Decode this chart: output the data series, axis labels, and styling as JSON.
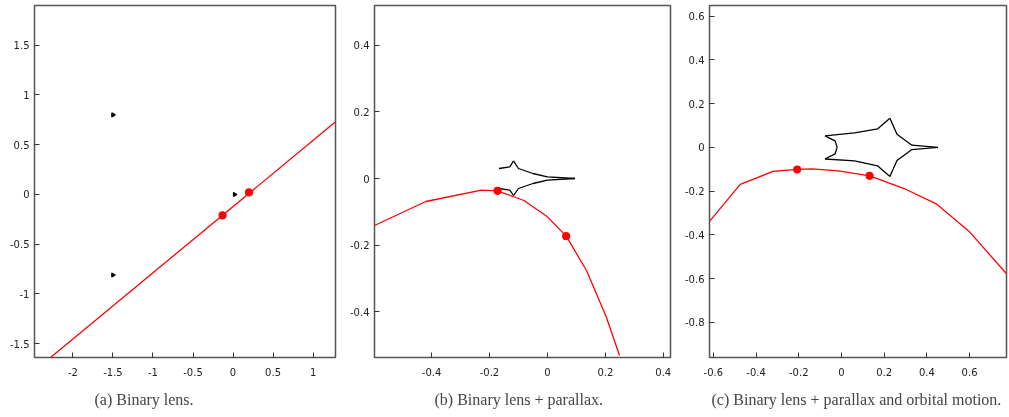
{
  "chart_data": [
    {
      "type": "line",
      "title": "(a)  Binary lens.",
      "xlim": [
        -2.48,
        1.28
      ],
      "ylim": [
        -1.64,
        1.9
      ],
      "xticks": [
        -2,
        -1.5,
        -1,
        -0.5,
        0,
        0.5,
        1
      ],
      "yticks": [
        -1.5,
        -1,
        -0.5,
        0,
        0.5,
        1,
        1.5
      ],
      "grid": false,
      "series": [
        {
          "type": "scatter",
          "marker": "triangle",
          "color": "#000000",
          "x": [
            -1.5,
            -1.5,
            0.02
          ],
          "values": [
            0.8,
            -0.81,
            0.0
          ]
        },
        {
          "color": "#ff0000",
          "x": [
            -2.28,
            1.28
          ],
          "values": [
            -1.64,
            0.73
          ]
        },
        {
          "type": "scatter",
          "marker": "circle",
          "color": "#ff0000",
          "x": [
            -0.13,
            0.2
          ],
          "values": [
            -0.21,
            0.02
          ]
        }
      ]
    },
    {
      "type": "line",
      "title": "(b)  Binary lens + parallax.",
      "xlim": [
        -0.597,
        0.425
      ],
      "ylim": [
        -0.537,
        0.519
      ],
      "xticks": [
        -0.4,
        -0.2,
        0,
        0.2,
        0.4
      ],
      "yticks": [
        -0.4,
        -0.2,
        0,
        0.2,
        0.4
      ],
      "grid": false,
      "series": [
        {
          "color": "#000000",
          "x": [
            -0.167,
            -0.13,
            -0.117
          ],
          "values": [
            0.03,
            0.035,
            0.053
          ]
        },
        {
          "color": "#000000",
          "x": [
            -0.117,
            -0.1,
            -0.05,
            0.0,
            0.095
          ],
          "values": [
            0.053,
            0.03,
            0.015,
            0.005,
            0.0
          ]
        },
        {
          "color": "#000000",
          "x": [
            -0.117,
            -0.1,
            -0.05,
            0.0,
            0.095
          ],
          "values": [
            -0.051,
            -0.03,
            -0.015,
            -0.005,
            0.0
          ]
        },
        {
          "color": "#000000",
          "x": [
            -0.167,
            -0.13,
            -0.117
          ],
          "values": [
            -0.03,
            -0.035,
            -0.051
          ]
        },
        {
          "color": "#ff0000",
          "x": [
            -0.597,
            -0.42,
            -0.228,
            -0.172,
            -0.081,
            0.0,
            0.065,
            0.135,
            0.203,
            0.249
          ],
          "values": [
            -0.141,
            -0.069,
            -0.035,
            -0.037,
            -0.066,
            -0.115,
            -0.173,
            -0.276,
            -0.415,
            -0.531
          ]
        },
        {
          "type": "scatter",
          "marker": "circle",
          "color": "#ff0000",
          "x": [
            0.065,
            -0.172
          ],
          "values": [
            -0.173,
            -0.037
          ]
        }
      ]
    },
    {
      "type": "line",
      "title": "(c)  Binary lens + parallax and orbital motion.",
      "xlim": [
        -0.618,
        0.773
      ],
      "ylim": [
        -0.961,
        0.649
      ],
      "xticks": [
        -0.6,
        -0.4,
        -0.2,
        0,
        0.2,
        0.4,
        0.6
      ],
      "yticks": [
        -0.8,
        -0.6,
        -0.4,
        -0.2,
        0,
        0.2,
        0.4,
        0.6
      ],
      "grid": false,
      "series": [
        {
          "color": "#000000",
          "x": [
            -0.077,
            0.061,
            0.17,
            0.227
          ],
          "values": [
            0.053,
            0.066,
            0.085,
            0.133
          ]
        },
        {
          "color": "#000000",
          "x": [
            0.227,
            0.26,
            0.33,
            0.452
          ],
          "values": [
            0.133,
            0.06,
            0.01,
            0.0
          ]
        },
        {
          "color": "#000000",
          "x": [
            -0.077,
            0.061,
            0.17,
            0.227
          ],
          "values": [
            -0.053,
            -0.062,
            -0.085,
            -0.133
          ]
        },
        {
          "color": "#000000",
          "x": [
            0.227,
            0.26,
            0.33,
            0.452
          ],
          "values": [
            -0.133,
            -0.06,
            -0.01,
            0.0
          ]
        },
        {
          "color": "#000000",
          "x": [
            -0.077,
            -0.03,
            -0.02
          ],
          "values": [
            0.053,
            0.03,
            0.0
          ]
        },
        {
          "color": "#000000",
          "x": [
            -0.077,
            -0.03,
            -0.02
          ],
          "values": [
            -0.053,
            -0.03,
            0.0
          ]
        },
        {
          "color": "#ff0000",
          "x": [
            -0.618,
            -0.474,
            -0.321,
            -0.207,
            -0.138,
            -0.015,
            0.132,
            0.291,
            0.444,
            0.597,
            0.773
          ],
          "values": [
            -0.338,
            -0.169,
            -0.11,
            -0.101,
            -0.098,
            -0.107,
            -0.13,
            -0.187,
            -0.258,
            -0.383,
            -0.578
          ]
        },
        {
          "type": "scatter",
          "marker": "circle",
          "color": "#ff0000",
          "x": [
            0.132,
            -0.207
          ],
          "values": [
            -0.13,
            -0.101
          ]
        }
      ]
    }
  ]
}
